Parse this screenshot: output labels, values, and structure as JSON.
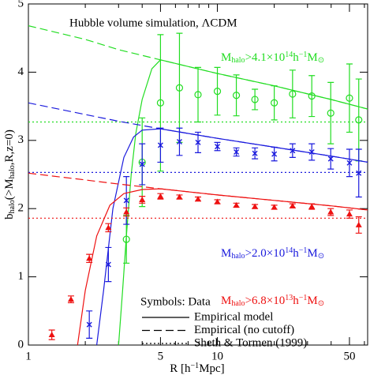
{
  "chart_data": {
    "type": "scatter",
    "title": "Hubble volume simulation, ΛCDM",
    "x_label": [
      {
        "t": "R [h"
      },
      {
        "sup": "−1"
      },
      {
        "t": "Mpc]"
      }
    ],
    "y_label": [
      {
        "t": "b"
      },
      {
        "sub": "halo"
      },
      {
        "t": "(>M"
      },
      {
        "sub": "halo"
      },
      {
        "t": ",R,z=0)"
      }
    ],
    "xlog": true,
    "xlim": [
      1,
      62.4
    ],
    "ylim": [
      0,
      5
    ],
    "xticks": [
      1,
      5,
      10,
      50
    ],
    "xminorticks": [
      2,
      3,
      4,
      6,
      7,
      8,
      9,
      20,
      30,
      40,
      60
    ],
    "yticks": [
      0,
      1,
      2,
      3,
      4,
      5
    ],
    "legend": {
      "title": "Symbols: Data",
      "entries": [
        {
          "label": "Empirical model",
          "style": "solid"
        },
        {
          "label": "Empirical (no cutoff)",
          "style": "dashed"
        },
        {
          "label": "Sheth & Tormen (1999)",
          "style": "dotted"
        }
      ]
    },
    "series": [
      {
        "name": [
          {
            "t": "M"
          },
          {
            "sub": "halo"
          },
          {
            "t": ">4.1×10"
          },
          {
            "sup": "14"
          },
          {
            "t": "h"
          },
          {
            "sup": "−1"
          },
          {
            "t": "M"
          },
          {
            "sub": "⊙"
          }
        ],
        "color": "#22dd22",
        "marker": "circle",
        "x": [
          3.3,
          4.0,
          5.0,
          6.3,
          7.9,
          10,
          12.6,
          15.8,
          20,
          25,
          31.6,
          39.8,
          50,
          56
        ],
        "values": [
          1.55,
          2.68,
          3.55,
          3.77,
          3.67,
          3.72,
          3.66,
          3.6,
          3.55,
          3.68,
          3.65,
          3.4,
          3.62,
          3.3
        ],
        "errors": [
          0.35,
          0.65,
          1.0,
          0.8,
          0.4,
          0.35,
          0.3,
          0.15,
          0.25,
          0.35,
          0.3,
          0.45,
          0.5,
          0.6
        ],
        "model": {
          "x": [
            3.0,
            3.15,
            3.3,
            3.5,
            3.7,
            4.0,
            4.5,
            5,
            10,
            20,
            40,
            62.4
          ],
          "values": [
            0,
            0.8,
            1.6,
            2.5,
            3.1,
            3.6,
            4.05,
            4.18,
            3.98,
            3.8,
            3.6,
            3.46
          ]
        },
        "no_cutoff": {
          "x": [
            1,
            2,
            3,
            5,
            10,
            20,
            40,
            62.4
          ],
          "values": [
            4.68,
            4.48,
            4.33,
            4.18,
            3.98,
            3.8,
            3.6,
            3.46
          ]
        },
        "sheth_tormen": 3.27
      },
      {
        "name": [
          {
            "t": "M"
          },
          {
            "sub": "halo"
          },
          {
            "t": ">2.0×10"
          },
          {
            "sup": "14"
          },
          {
            "t": "h"
          },
          {
            "sup": "−1"
          },
          {
            "t": "M"
          },
          {
            "sub": "⊙"
          }
        ],
        "color": "#1a1add",
        "marker": "cross",
        "x": [
          2.1,
          2.65,
          3.3,
          4.0,
          5.0,
          6.3,
          7.9,
          10,
          12.6,
          15.8,
          20,
          25,
          31.6,
          39.8,
          50,
          56
        ],
        "values": [
          0.3,
          1.18,
          2.12,
          2.65,
          2.93,
          2.98,
          2.97,
          2.91,
          2.83,
          2.81,
          2.8,
          2.85,
          2.83,
          2.73,
          2.67,
          2.52
        ],
        "errors": [
          0.2,
          0.25,
          0.35,
          0.3,
          0.25,
          0.2,
          0.15,
          0.06,
          0.06,
          0.08,
          0.1,
          0.1,
          0.12,
          0.15,
          0.2,
          0.35
        ],
        "model": {
          "x": [
            2.3,
            2.5,
            2.8,
            3.2,
            3.6,
            4.0,
            5,
            10,
            20,
            40,
            62.4
          ],
          "values": [
            0,
            0.8,
            2.0,
            2.75,
            3.05,
            3.15,
            3.17,
            3.03,
            2.9,
            2.77,
            2.68
          ]
        },
        "no_cutoff": {
          "x": [
            1,
            2,
            3,
            5,
            10,
            20,
            40,
            62.4
          ],
          "values": [
            3.55,
            3.38,
            3.28,
            3.17,
            3.03,
            2.9,
            2.77,
            2.68
          ]
        },
        "sheth_tormen": 2.53
      },
      {
        "name": [
          {
            "t": "M"
          },
          {
            "sub": "halo"
          },
          {
            "t": ">6.8×10"
          },
          {
            "sup": "13"
          },
          {
            "t": "h"
          },
          {
            "sup": "−1"
          },
          {
            "t": "M"
          },
          {
            "sub": "⊙"
          }
        ],
        "color": "#ee1111",
        "marker": "triangle",
        "x": [
          1.33,
          1.68,
          2.1,
          2.65,
          3.3,
          4.0,
          5.0,
          6.3,
          7.9,
          10,
          12.6,
          15.8,
          20,
          25,
          31.6,
          39.8,
          50,
          56
        ],
        "values": [
          0.15,
          0.67,
          1.27,
          1.72,
          1.95,
          2.13,
          2.18,
          2.17,
          2.14,
          2.1,
          2.05,
          2.03,
          2.02,
          2.04,
          2.03,
          1.95,
          1.92,
          1.76
        ],
        "errors": [
          0.07,
          0.05,
          0.06,
          0.06,
          0.06,
          0.05,
          0.04,
          0.03,
          0.03,
          0.03,
          0.03,
          0.03,
          0.03,
          0.03,
          0.04,
          0.05,
          0.06,
          0.12
        ],
        "model": {
          "x": [
            1.82,
            2.0,
            2.3,
            2.7,
            3.2,
            4.0,
            5,
            10,
            20,
            40,
            62.4
          ],
          "values": [
            0,
            0.8,
            1.6,
            2.05,
            2.22,
            2.28,
            2.29,
            2.2,
            2.12,
            2.04,
            1.98
          ]
        },
        "no_cutoff": {
          "x": [
            1,
            2,
            3,
            5,
            10,
            20,
            40,
            62.4
          ],
          "values": [
            2.52,
            2.42,
            2.36,
            2.29,
            2.2,
            2.12,
            2.04,
            1.98
          ]
        },
        "sheth_tormen": 1.86
      }
    ]
  }
}
